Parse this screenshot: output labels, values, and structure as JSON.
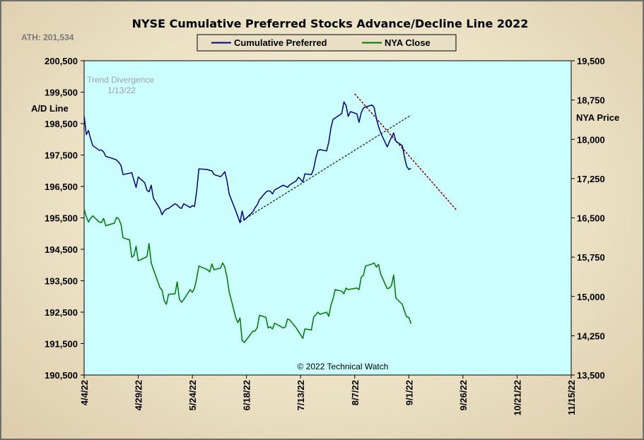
{
  "chart_data": {
    "type": "line",
    "title": "NYSE Cumulative  Preferred Stocks Advance/Decline  Line 2022",
    "ath_label": "ATH: 201,534",
    "left_axis": {
      "label": "A/D Line",
      "range": [
        190500,
        200500
      ],
      "ticks": [
        "200,500",
        "199,500",
        "198,500",
        "197,500",
        "196,500",
        "195,500",
        "194,500",
        "193,500",
        "192,500",
        "191,500",
        "190,500"
      ]
    },
    "right_axis": {
      "label": "NYA Price",
      "range": [
        13500,
        19500
      ],
      "ticks": [
        "19,500",
        "18,750",
        "18,000",
        "17,250",
        "16,500",
        "15,750",
        "15,000",
        "14,250",
        "13,500"
      ]
    },
    "x_ticks": [
      "4/4/22",
      "4/29/22",
      "5/24/22",
      "6/18/22",
      "7/13/22",
      "8/7/22",
      "9/1/22",
      "9/26/22",
      "10/21/22",
      "11/15/22"
    ],
    "legend": [
      {
        "name": "Cumulative Preferred",
        "color": "#000080"
      },
      {
        "name": "NYA Close",
        "color": "#007800"
      }
    ],
    "annotation": {
      "line1": "Trend  Divergence",
      "line2": "1/13/22"
    },
    "copyright": "© 2022 Technical Watch",
    "series": [
      {
        "name": "Cumulative Preferred",
        "axis": "left",
        "color": "#000080",
        "points": [
          [
            "2022-04-04",
            198740
          ],
          [
            "2022-04-05",
            198150
          ],
          [
            "2022-04-06",
            198280
          ],
          [
            "2022-04-07",
            198020
          ],
          [
            "2022-04-08",
            197800
          ],
          [
            "2022-04-11",
            197650
          ],
          [
            "2022-04-12",
            197660
          ],
          [
            "2022-04-13",
            197600
          ],
          [
            "2022-04-14",
            197460
          ],
          [
            "2022-04-18",
            197370
          ],
          [
            "2022-04-19",
            197340
          ],
          [
            "2022-04-20",
            197270
          ],
          [
            "2022-04-21",
            197170
          ],
          [
            "2022-04-22",
            196880
          ],
          [
            "2022-04-25",
            196920
          ],
          [
            "2022-04-26",
            196940
          ],
          [
            "2022-04-27",
            196700
          ],
          [
            "2022-04-28",
            196470
          ],
          [
            "2022-04-29",
            196800
          ],
          [
            "2022-05-02",
            196620
          ],
          [
            "2022-05-03",
            196380
          ],
          [
            "2022-05-04",
            196330
          ],
          [
            "2022-05-05",
            196540
          ],
          [
            "2022-05-06",
            196130
          ],
          [
            "2022-05-09",
            195790
          ],
          [
            "2022-05-10",
            195600
          ],
          [
            "2022-05-11",
            195720
          ],
          [
            "2022-05-12",
            195780
          ],
          [
            "2022-05-13",
            195800
          ],
          [
            "2022-05-16",
            195950
          ],
          [
            "2022-05-17",
            195910
          ],
          [
            "2022-05-18",
            195830
          ],
          [
            "2022-05-19",
            195800
          ],
          [
            "2022-05-20",
            195950
          ],
          [
            "2022-05-23",
            195830
          ],
          [
            "2022-05-24",
            195890
          ],
          [
            "2022-05-25",
            195860
          ],
          [
            "2022-05-26",
            196350
          ],
          [
            "2022-05-27",
            197060
          ],
          [
            "2022-05-31",
            197040
          ],
          [
            "2022-06-01",
            197010
          ],
          [
            "2022-06-02",
            197000
          ],
          [
            "2022-06-03",
            196880
          ],
          [
            "2022-06-06",
            196810
          ],
          [
            "2022-06-07",
            196880
          ],
          [
            "2022-06-08",
            196970
          ],
          [
            "2022-06-09",
            196690
          ],
          [
            "2022-06-10",
            196260
          ],
          [
            "2022-06-13",
            195730
          ],
          [
            "2022-06-14",
            195550
          ],
          [
            "2022-06-15",
            195350
          ],
          [
            "2022-06-16",
            195720
          ],
          [
            "2022-06-17",
            195430
          ],
          [
            "2022-06-21",
            195700
          ],
          [
            "2022-06-22",
            195830
          ],
          [
            "2022-06-23",
            195920
          ],
          [
            "2022-06-24",
            196080
          ],
          [
            "2022-06-27",
            196320
          ],
          [
            "2022-06-28",
            196360
          ],
          [
            "2022-06-29",
            196350
          ],
          [
            "2022-06-30",
            196260
          ],
          [
            "2022-07-01",
            196390
          ],
          [
            "2022-07-05",
            196540
          ],
          [
            "2022-07-06",
            196510
          ],
          [
            "2022-07-07",
            196470
          ],
          [
            "2022-07-08",
            196550
          ],
          [
            "2022-07-11",
            196680
          ],
          [
            "2022-07-12",
            196790
          ],
          [
            "2022-07-13",
            196730
          ],
          [
            "2022-07-14",
            196640
          ],
          [
            "2022-07-15",
            196900
          ],
          [
            "2022-07-18",
            196880
          ],
          [
            "2022-07-19",
            197050
          ],
          [
            "2022-07-20",
            197400
          ],
          [
            "2022-07-21",
            197650
          ],
          [
            "2022-07-22",
            197670
          ],
          [
            "2022-07-25",
            197630
          ],
          [
            "2022-07-26",
            197900
          ],
          [
            "2022-07-27",
            198360
          ],
          [
            "2022-07-28",
            198640
          ],
          [
            "2022-07-29",
            198680
          ],
          [
            "2022-08-01",
            198820
          ],
          [
            "2022-08-02",
            199190
          ],
          [
            "2022-08-03",
            199080
          ],
          [
            "2022-08-04",
            198730
          ],
          [
            "2022-08-05",
            198880
          ],
          [
            "2022-08-08",
            198810
          ],
          [
            "2022-08-09",
            198540
          ],
          [
            "2022-08-10",
            198850
          ],
          [
            "2022-08-11",
            198990
          ],
          [
            "2022-08-12",
            199030
          ],
          [
            "2022-08-15",
            199090
          ],
          [
            "2022-08-16",
            199010
          ],
          [
            "2022-08-17",
            198670
          ],
          [
            "2022-08-18",
            198400
          ],
          [
            "2022-08-19",
            198210
          ],
          [
            "2022-08-22",
            197760
          ],
          [
            "2022-08-23",
            197920
          ],
          [
            "2022-08-24",
            198070
          ],
          [
            "2022-08-25",
            198200
          ],
          [
            "2022-08-26",
            197940
          ],
          [
            "2022-08-29",
            197800
          ],
          [
            "2022-08-30",
            197440
          ],
          [
            "2022-08-31",
            197140
          ],
          [
            "2022-09-01",
            197040
          ],
          [
            "2022-09-02",
            197080
          ]
        ]
      },
      {
        "name": "NYA Close",
        "axis": "right",
        "color": "#007800",
        "points": [
          [
            "2022-04-04",
            16670
          ],
          [
            "2022-04-05",
            16520
          ],
          [
            "2022-04-06",
            16420
          ],
          [
            "2022-04-07",
            16490
          ],
          [
            "2022-04-08",
            16540
          ],
          [
            "2022-04-11",
            16420
          ],
          [
            "2022-04-12",
            16410
          ],
          [
            "2022-04-13",
            16490
          ],
          [
            "2022-04-14",
            16350
          ],
          [
            "2022-04-18",
            16400
          ],
          [
            "2022-04-19",
            16510
          ],
          [
            "2022-04-20",
            16480
          ],
          [
            "2022-04-21",
            16380
          ],
          [
            "2022-04-22",
            16120
          ],
          [
            "2022-04-25",
            16080
          ],
          [
            "2022-04-26",
            15750
          ],
          [
            "2022-04-27",
            15780
          ],
          [
            "2022-04-28",
            15960
          ],
          [
            "2022-04-29",
            15680
          ],
          [
            "2022-05-02",
            15740
          ],
          [
            "2022-05-03",
            15760
          ],
          [
            "2022-05-04",
            16010
          ],
          [
            "2022-05-05",
            15640
          ],
          [
            "2022-05-06",
            15520
          ],
          [
            "2022-05-09",
            15170
          ],
          [
            "2022-05-10",
            15120
          ],
          [
            "2022-05-11",
            14920
          ],
          [
            "2022-05-12",
            14850
          ],
          [
            "2022-05-13",
            15040
          ],
          [
            "2022-05-16",
            15050
          ],
          [
            "2022-05-17",
            15280
          ],
          [
            "2022-05-18",
            14950
          ],
          [
            "2022-05-19",
            14890
          ],
          [
            "2022-05-20",
            14940
          ],
          [
            "2022-05-23",
            15130
          ],
          [
            "2022-05-24",
            15080
          ],
          [
            "2022-05-25",
            15160
          ],
          [
            "2022-05-26",
            15340
          ],
          [
            "2022-05-27",
            15580
          ],
          [
            "2022-05-31",
            15510
          ],
          [
            "2022-06-01",
            15470
          ],
          [
            "2022-06-02",
            15620
          ],
          [
            "2022-06-03",
            15510
          ],
          [
            "2022-06-06",
            15540
          ],
          [
            "2022-06-07",
            15640
          ],
          [
            "2022-06-08",
            15560
          ],
          [
            "2022-06-09",
            15370
          ],
          [
            "2022-06-10",
            15090
          ],
          [
            "2022-06-13",
            14600
          ],
          [
            "2022-06-14",
            14500
          ],
          [
            "2022-06-15",
            14590
          ],
          [
            "2022-06-16",
            14160
          ],
          [
            "2022-06-17",
            14120
          ],
          [
            "2022-06-21",
            14340
          ],
          [
            "2022-06-22",
            14340
          ],
          [
            "2022-06-23",
            14410
          ],
          [
            "2022-06-24",
            14640
          ],
          [
            "2022-06-27",
            14600
          ],
          [
            "2022-06-28",
            14400
          ],
          [
            "2022-06-29",
            14420
          ],
          [
            "2022-06-30",
            14380
          ],
          [
            "2022-07-01",
            14490
          ],
          [
            "2022-07-05",
            14400
          ],
          [
            "2022-07-06",
            14420
          ],
          [
            "2022-07-07",
            14570
          ],
          [
            "2022-07-08",
            14550
          ],
          [
            "2022-07-11",
            14400
          ],
          [
            "2022-07-12",
            14330
          ],
          [
            "2022-07-13",
            14270
          ],
          [
            "2022-07-14",
            14200
          ],
          [
            "2022-07-15",
            14380
          ],
          [
            "2022-07-18",
            14360
          ],
          [
            "2022-07-19",
            14600
          ],
          [
            "2022-07-20",
            14650
          ],
          [
            "2022-07-21",
            14700
          ],
          [
            "2022-07-22",
            14660
          ],
          [
            "2022-07-25",
            14700
          ],
          [
            "2022-07-26",
            14620
          ],
          [
            "2022-07-27",
            14830
          ],
          [
            "2022-07-28",
            14960
          ],
          [
            "2022-07-29",
            15130
          ],
          [
            "2022-08-01",
            15100
          ],
          [
            "2022-08-02",
            15050
          ],
          [
            "2022-08-03",
            15160
          ],
          [
            "2022-08-04",
            15130
          ],
          [
            "2022-08-05",
            15140
          ],
          [
            "2022-08-08",
            15160
          ],
          [
            "2022-08-09",
            15130
          ],
          [
            "2022-08-10",
            15370
          ],
          [
            "2022-08-11",
            15400
          ],
          [
            "2022-08-12",
            15580
          ],
          [
            "2022-08-15",
            15620
          ],
          [
            "2022-08-16",
            15640
          ],
          [
            "2022-08-17",
            15560
          ],
          [
            "2022-08-18",
            15610
          ],
          [
            "2022-08-19",
            15430
          ],
          [
            "2022-08-22",
            15150
          ],
          [
            "2022-08-23",
            15160
          ],
          [
            "2022-08-24",
            15210
          ],
          [
            "2022-08-25",
            15410
          ],
          [
            "2022-08-26",
            14970
          ],
          [
            "2022-08-29",
            14850
          ],
          [
            "2022-08-30",
            14720
          ],
          [
            "2022-08-31",
            14610
          ],
          [
            "2022-09-01",
            14600
          ],
          [
            "2022-09-02",
            14480
          ]
        ]
      }
    ],
    "trendlines": [
      {
        "axis": "left",
        "color": "#2a4a2a",
        "style": "dashed",
        "from": [
          "2022-06-15",
          195370
        ],
        "to": [
          "2022-09-02",
          198770
        ]
      },
      {
        "axis": "left",
        "color": "#8b0000",
        "style": "dashed",
        "from": [
          "2022-08-07",
          199450
        ],
        "to": [
          "2022-09-23",
          195750
        ]
      }
    ]
  }
}
